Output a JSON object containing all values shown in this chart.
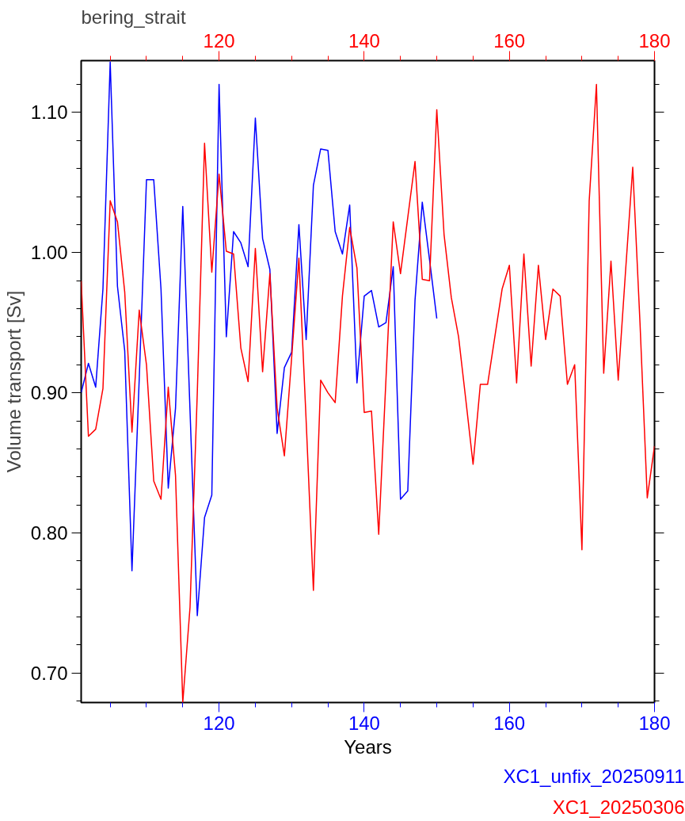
{
  "chart_data": {
    "type": "line",
    "title": "bering_strait",
    "xlabel": "Years",
    "ylabel": "Volume transport [Sv]",
    "xlim": [
      101,
      180
    ],
    "xticks": [
      120,
      140,
      160,
      180
    ],
    "x2lim": [
      101,
      180
    ],
    "x2ticks": [
      120,
      140,
      160,
      180
    ],
    "ylim": [
      0.679,
      1.137
    ],
    "yticks": [
      {
        "value": 0.7,
        "label": "0.70"
      },
      {
        "value": 0.8,
        "label": "0.80"
      },
      {
        "value": 0.9,
        "label": "0.90"
      },
      {
        "value": 1.0,
        "label": "1.00"
      },
      {
        "value": 1.1,
        "label": "1.10"
      }
    ],
    "grid": false,
    "legend": "bottom",
    "marker": "none",
    "line_style": "solid",
    "series": [
      {
        "name": "XC1_unfix_20250911",
        "color": "#0000ff",
        "x": [
          101,
          102,
          103,
          104,
          105,
          106,
          107,
          108,
          109,
          110,
          111,
          112,
          113,
          114,
          115,
          116,
          117,
          118,
          119,
          120,
          121,
          122,
          123,
          124,
          125,
          126,
          127,
          128,
          129,
          130,
          131,
          132,
          133,
          134,
          135,
          136,
          137,
          138,
          139,
          140,
          141,
          142,
          143,
          144,
          145,
          146,
          147,
          148,
          149,
          150
        ],
        "values": [
          0.9,
          0.921,
          0.904,
          0.974,
          1.136,
          0.976,
          0.93,
          0.773,
          0.91,
          1.052,
          1.052,
          0.974,
          0.832,
          0.889,
          1.033,
          0.887,
          0.741,
          0.811,
          0.827,
          1.12,
          0.94,
          1.015,
          1.007,
          0.99,
          1.096,
          1.01,
          0.988,
          0.871,
          0.918,
          0.929,
          1.02,
          0.938,
          1.048,
          1.074,
          1.073,
          1.015,
          0.999,
          1.034,
          0.907,
          0.969,
          0.973,
          0.947,
          0.95,
          0.99,
          0.824,
          0.83,
          0.966,
          1.036,
          0.995,
          0.953
        ]
      },
      {
        "name": "XC1_20250306",
        "color": "#ff0000",
        "axis": "x2",
        "x": [
          101,
          102,
          103,
          104,
          105,
          106,
          107,
          108,
          109,
          110,
          111,
          112,
          113,
          114,
          115,
          116,
          117,
          118,
          119,
          120,
          121,
          122,
          123,
          124,
          125,
          126,
          127,
          128,
          129,
          130,
          131,
          132,
          133,
          134,
          135,
          136,
          137,
          138,
          139,
          140,
          141,
          142,
          143,
          144,
          145,
          146,
          147,
          148,
          149,
          150,
          151,
          152,
          153,
          154,
          155,
          156,
          157,
          158,
          159,
          160,
          161,
          162,
          163,
          164,
          165,
          166,
          167,
          168,
          169,
          170,
          171,
          172,
          173,
          174,
          175,
          176,
          177,
          178,
          179,
          180
        ],
        "values": [
          0.98,
          0.869,
          0.874,
          0.903,
          1.037,
          1.022,
          0.972,
          0.872,
          0.959,
          0.92,
          0.837,
          0.824,
          0.904,
          0.841,
          0.679,
          0.747,
          0.9,
          1.078,
          0.986,
          1.056,
          1.001,
          0.999,
          0.932,
          0.908,
          1.003,
          0.915,
          0.985,
          0.889,
          0.855,
          0.925,
          0.996,
          0.88,
          0.759,
          0.909,
          0.9,
          0.893,
          0.969,
          1.018,
          0.989,
          0.886,
          0.887,
          0.799,
          0.91,
          1.022,
          0.985,
          1.025,
          1.065,
          0.981,
          0.98,
          1.102,
          1.013,
          0.968,
          0.94,
          0.895,
          0.849,
          0.906,
          0.906,
          0.94,
          0.974,
          0.991,
          0.907,
          0.999,
          0.919,
          0.991,
          0.938,
          0.974,
          0.969,
          0.906,
          0.92,
          0.788,
          1.037,
          1.12,
          0.914,
          0.994,
          0.909,
          0.986,
          1.061,
          0.95,
          0.825,
          0.862
        ]
      }
    ]
  }
}
